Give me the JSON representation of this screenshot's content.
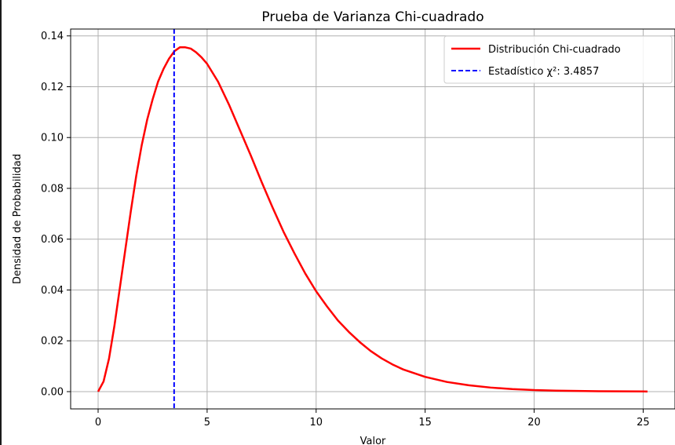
{
  "chart_data": {
    "type": "line",
    "title": "Prueba de Varianza Chi-cuadrado",
    "xlabel": "Valor",
    "ylabel": "Densidad de Probabilidad",
    "xlim": [
      -1.26,
      26.46
    ],
    "ylim": [
      -0.0068,
      0.1427
    ],
    "x_ticks": [
      0,
      5,
      10,
      15,
      20,
      25
    ],
    "y_ticks": [
      0.0,
      0.02,
      0.04,
      0.06,
      0.08,
      0.1,
      0.12,
      0.14
    ],
    "x_tick_labels": [
      "0",
      "5",
      "10",
      "15",
      "20",
      "25"
    ],
    "y_tick_labels": [
      "0.00",
      "0.02",
      "0.04",
      "0.06",
      "0.08",
      "0.10",
      "0.12",
      "0.14"
    ],
    "grid": true,
    "legend_position": "top-right",
    "series": [
      {
        "name": "Distribución Chi-cuadrado",
        "color": "#ff0000",
        "style": "solid",
        "x": [
          0,
          0.25,
          0.5,
          0.75,
          1,
          1.25,
          1.5,
          1.75,
          2,
          2.25,
          2.5,
          2.75,
          3,
          3.25,
          3.5,
          3.75,
          4,
          4.25,
          4.5,
          4.75,
          5,
          5.5,
          6,
          6.5,
          7,
          7.5,
          8,
          8.5,
          9,
          9.5,
          10,
          10.5,
          11,
          11.5,
          12,
          12.5,
          13,
          13.5,
          14,
          15,
          16,
          17,
          18,
          19,
          20,
          21,
          22,
          23,
          24,
          25,
          25.2
        ],
        "y": [
          0.0,
          0.004,
          0.013,
          0.026,
          0.041,
          0.056,
          0.071,
          0.085,
          0.097,
          0.107,
          0.115,
          0.122,
          0.127,
          0.131,
          0.134,
          0.1355,
          0.1355,
          0.135,
          0.1335,
          0.1315,
          0.129,
          0.122,
          0.113,
          0.103,
          0.093,
          0.0825,
          0.0725,
          0.063,
          0.0545,
          0.0465,
          0.0395,
          0.0335,
          0.028,
          0.0235,
          0.0195,
          0.016,
          0.0131,
          0.0107,
          0.0087,
          0.0058,
          0.0038,
          0.0025,
          0.0016,
          0.001,
          0.0006,
          0.0004,
          0.00025,
          0.00015,
          0.0001,
          6e-05,
          5e-05
        ]
      },
      {
        "name": "Estadístico χ²: 3.4857",
        "color": "#0000ff",
        "style": "dashed",
        "type": "vline",
        "x": 3.4857
      }
    ]
  }
}
